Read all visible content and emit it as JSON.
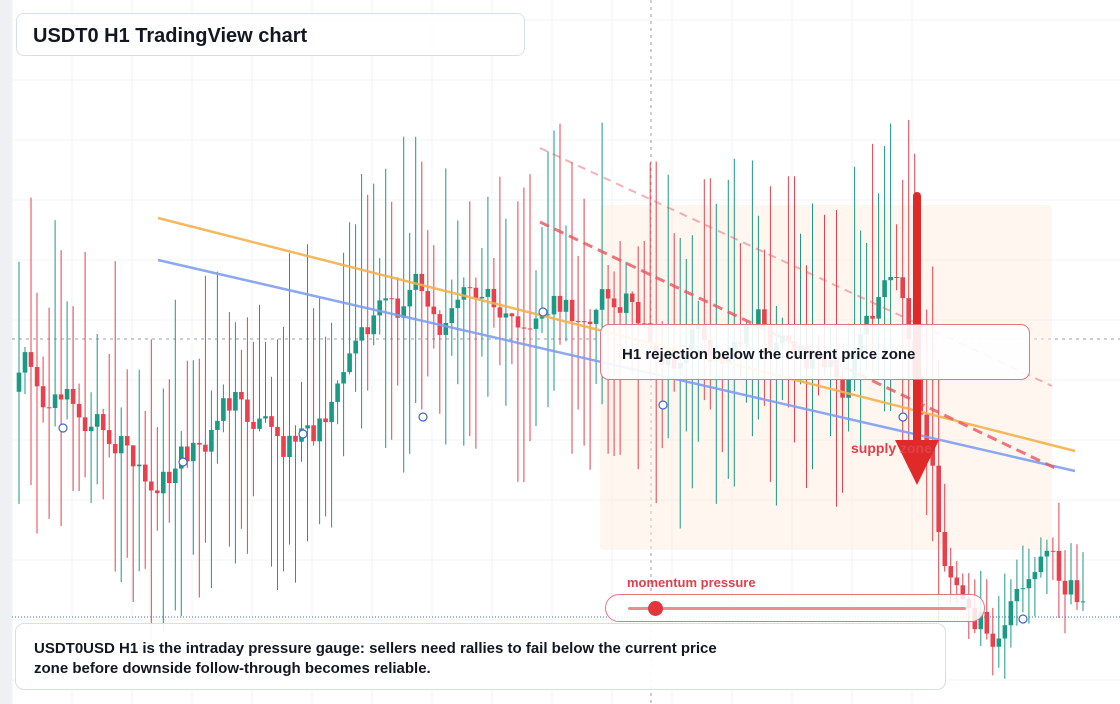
{
  "header": {
    "title": "USDT0 H1 TradingView chart"
  },
  "callout": {
    "text": "H1 rejection below the current price zone"
  },
  "zone": {
    "label": "supply zone"
  },
  "gauge": {
    "label": "momentum pressure",
    "level": 0.08
  },
  "caption": {
    "text": "USDT0USD H1 is the intraday pressure gauge: sellers need rallies to fail below the current price zone before downside follow-through becomes reliable."
  },
  "colors": {
    "bull": "#1a9a84",
    "bear": "#e8404c",
    "trend_upper": "#f5b14c",
    "trend_lower": "#7f9ff0",
    "channel": "#e8555f",
    "arrow": "#e02a2a",
    "zone": "#ffeadb"
  },
  "chart_data": {
    "type": "candlestick",
    "symbol": "USDT0USD",
    "timeframe": "H1",
    "grid": true,
    "candle_count": 178,
    "price_range": [
      0,
      100
    ],
    "seed_open": 46,
    "end_close": 8,
    "indicators": [
      "descending trendline (orange)",
      "descending trendline (blue)",
      "dashed downward channel (red)",
      "downward arrow (red)"
    ]
  }
}
